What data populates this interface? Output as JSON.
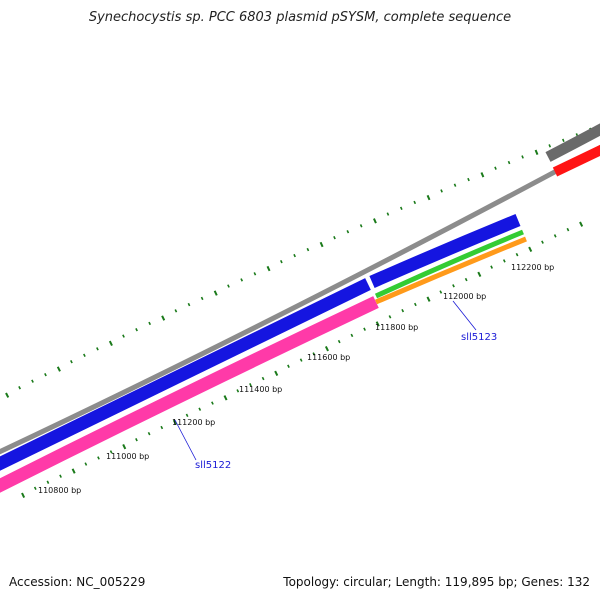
{
  "title": "Synechocystis sp. PCC 6803 plasmid pSYSM, complete sequence",
  "footer": {
    "accession": "Accession: NC_005229",
    "summary": "Topology: circular; Length: 119,895 bp; Genes: 132"
  },
  "colors": {
    "backbone": "#8c8c8c",
    "tick": "#1a7a1a",
    "cds_forward": "#1515e0",
    "cds_reverse": "#ff3aa8",
    "gene_green": "#33cc33",
    "gene_orange": "#ff9a1a",
    "red_feature": "#ff1414",
    "gray_feature": "#6a6a6a",
    "gene_label": "#1a1ad6"
  },
  "ruler_labels": [
    {
      "label": "110800 bp",
      "bp": 110800
    },
    {
      "label": "111000 bp",
      "bp": 111000
    },
    {
      "label": "111200 bp",
      "bp": 111200
    },
    {
      "label": "111400 bp",
      "bp": 111400
    },
    {
      "label": "111600 bp",
      "bp": 111600
    },
    {
      "label": "111800 bp",
      "bp": 111800
    },
    {
      "label": "112000 bp",
      "bp": 112000
    },
    {
      "label": "112200 bp",
      "bp": 112200
    }
  ],
  "gene_labels": [
    {
      "name": "sll5122"
    },
    {
      "name": "sll5123"
    }
  ]
}
